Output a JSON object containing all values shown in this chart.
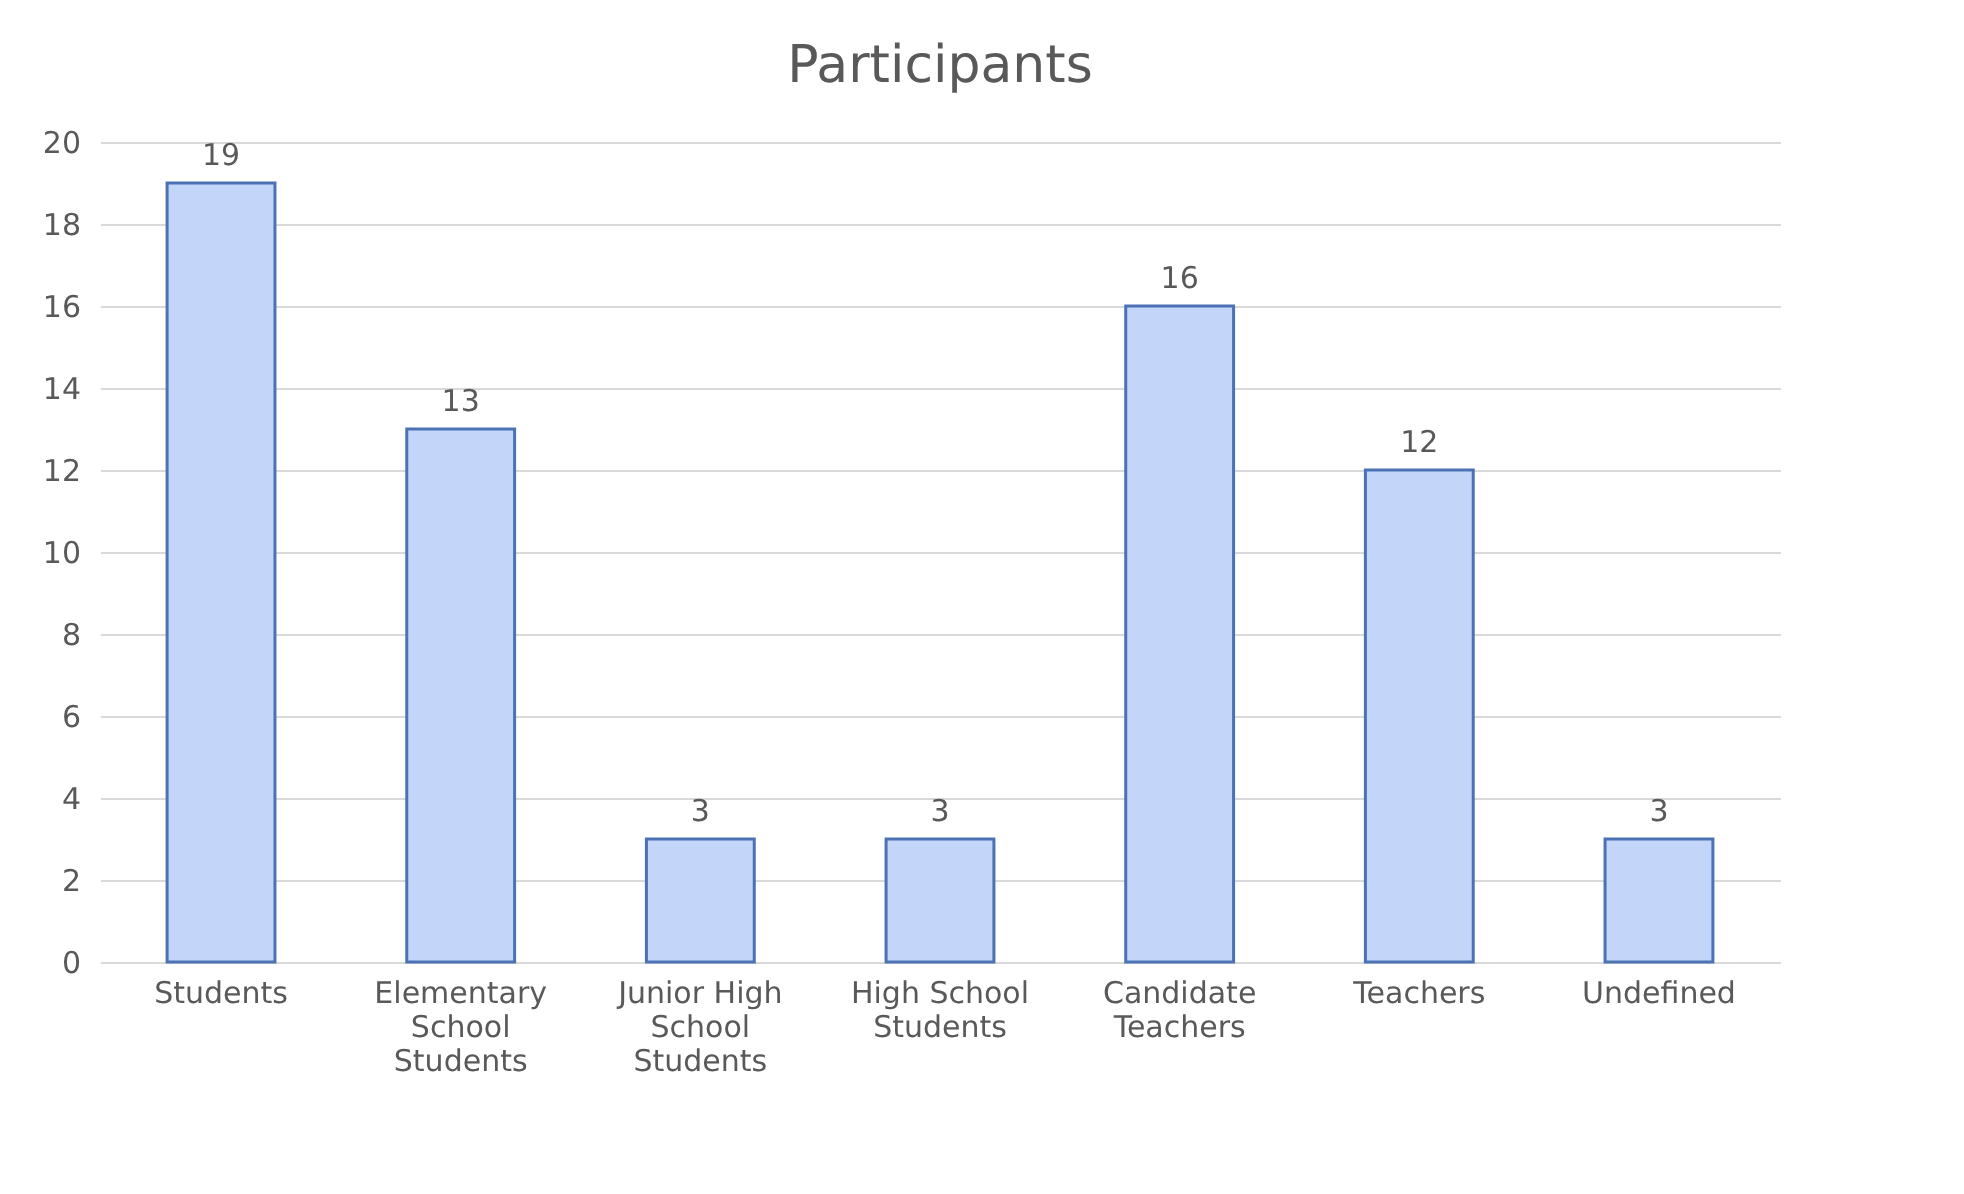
{
  "chart_data": {
    "type": "bar",
    "title": "Participants",
    "categories": [
      "Students",
      "Elementary School Students",
      "Junior High School Students",
      "High School Students",
      "Candidate Teachers",
      "Teachers",
      "Undefined"
    ],
    "values": [
      19,
      13,
      3,
      3,
      16,
      12,
      3
    ],
    "color": "#c3d6fa",
    "ylim": [
      0,
      20
    ],
    "yticks": [
      0,
      2,
      4,
      6,
      8,
      10,
      12,
      14,
      16,
      18,
      20
    ],
    "grid": "y",
    "data_labels": true
  }
}
